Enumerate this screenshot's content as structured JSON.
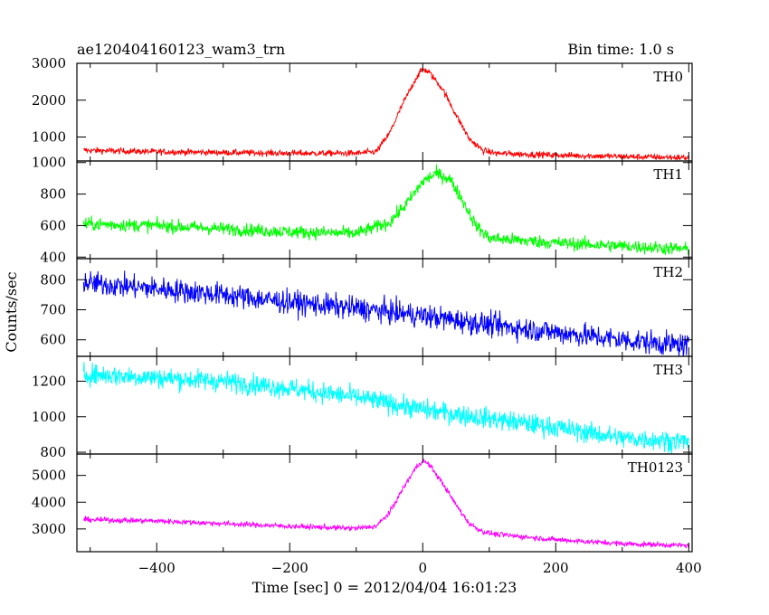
{
  "header": {
    "title": "ae120404160123_wam3_trn",
    "bin_time": "Bin time: 1.0 s"
  },
  "axes": {
    "ylabel": "Counts/sec",
    "xlabel": "Time [sec] 0 = 2012/04/04 16:01:23",
    "x_ticks": [
      "−400",
      "−200",
      "0",
      "200",
      "400"
    ]
  },
  "chart_data": [
    {
      "type": "line",
      "name": "TH0",
      "color": "#ff0000",
      "ylim": [
        350,
        3000
      ],
      "y_ticks": [
        "1000",
        "2000",
        "3000"
      ],
      "noise": 60,
      "x": [
        -510,
        -400,
        -300,
        -200,
        -100,
        -70,
        -50,
        -30,
        -10,
        0,
        10,
        30,
        50,
        70,
        90,
        110,
        200,
        300,
        400
      ],
      "y": [
        640,
        600,
        580,
        560,
        560,
        600,
        1100,
        1900,
        2600,
        2850,
        2750,
        2300,
        1600,
        950,
        640,
        560,
        510,
        470,
        440
      ]
    },
    {
      "type": "line",
      "name": "TH1",
      "color": "#00ff00",
      "ylim": [
        390,
        1010
      ],
      "y_ticks": [
        "400",
        "600",
        "800",
        "1000"
      ],
      "noise": 30,
      "x": [
        -510,
        -400,
        -300,
        -200,
        -100,
        -50,
        -20,
        0,
        20,
        40,
        60,
        80,
        100,
        200,
        300,
        400
      ],
      "y": [
        610,
        600,
        580,
        560,
        550,
        620,
        760,
        880,
        930,
        900,
        760,
        600,
        520,
        490,
        470,
        450
      ],
      "y_vals_unused": null
    },
    {
      "type": "line",
      "name": "TH2",
      "color": "#0000ff",
      "ylim": [
        545,
        870
      ],
      "y_ticks": [
        "600",
        "700",
        "800"
      ],
      "noise": 28,
      "x": [
        -510,
        -400,
        -300,
        -200,
        -100,
        0,
        100,
        200,
        300,
        400
      ],
      "y": [
        790,
        770,
        750,
        725,
        705,
        680,
        650,
        625,
        600,
        580
      ]
    },
    {
      "type": "line",
      "name": "TH3",
      "color": "#00ffff",
      "ylim": [
        790,
        1340
      ],
      "y_ticks": [
        "800",
        "1000",
        "1200"
      ],
      "noise": 42,
      "x": [
        -510,
        -400,
        -300,
        -200,
        -100,
        0,
        100,
        200,
        300,
        400
      ],
      "y": [
        1240,
        1220,
        1200,
        1160,
        1110,
        1040,
        990,
        940,
        880,
        860
      ]
    },
    {
      "type": "line",
      "name": "TH0123",
      "color": "#ff00ff",
      "ylim": [
        2150,
        5800
      ],
      "y_ticks": [
        "3000",
        "4000",
        "5000"
      ],
      "noise": 70,
      "x": [
        -510,
        -400,
        -300,
        -200,
        -100,
        -70,
        -50,
        -30,
        -10,
        0,
        10,
        30,
        50,
        70,
        90,
        110,
        200,
        300,
        400
      ],
      "y": [
        3350,
        3300,
        3200,
        3100,
        3020,
        3100,
        3600,
        4500,
        5300,
        5550,
        5400,
        4700,
        3900,
        3200,
        2900,
        2800,
        2600,
        2450,
        2380
      ]
    }
  ],
  "xlim": [
    -520,
    405
  ]
}
